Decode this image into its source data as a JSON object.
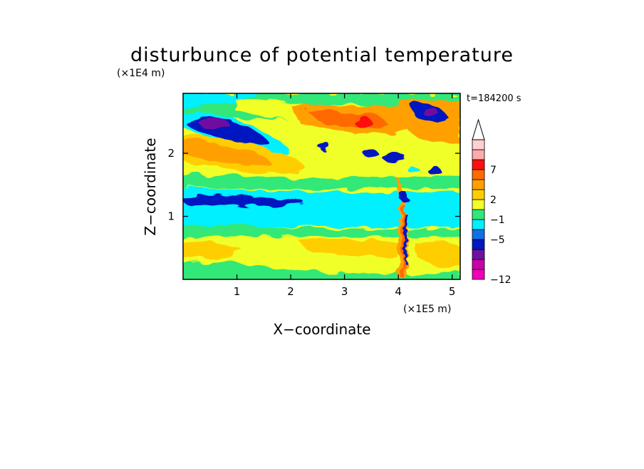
{
  "chart_data": {
    "type": "heatmap",
    "title": "disturbunce of potential temperature",
    "xlabel": "X−coordinate",
    "ylabel": "Z−coordinate",
    "x_unit": "(×1E5 m)",
    "y_unit": "(×1E4 m)",
    "time_label": "t=184200 s",
    "xlim": [
      0,
      5.15
    ],
    "ylim": [
      0,
      2.95
    ],
    "x_ticks": [
      1,
      2,
      3,
      4,
      5
    ],
    "y_ticks": [
      1,
      2
    ],
    "x_tick_labels": [
      "1",
      "2",
      "3",
      "4",
      "5"
    ],
    "y_tick_labels": [
      "1",
      "2"
    ],
    "colorbar": {
      "levels": [
        "−12",
        "−5",
        "−1",
        "2",
        "7"
      ],
      "colors": [
        "#f000b8",
        "#c800a8",
        "#7010a0",
        "#0018c0",
        "#1070e8",
        "#00f0ff",
        "#30e878",
        "#f0ff28",
        "#ffce00",
        "#ffa000",
        "#ff6a00",
        "#ff1010",
        "#ffaaaa",
        "#ffd0d0"
      ],
      "extend_max": true
    },
    "grid": false
  }
}
